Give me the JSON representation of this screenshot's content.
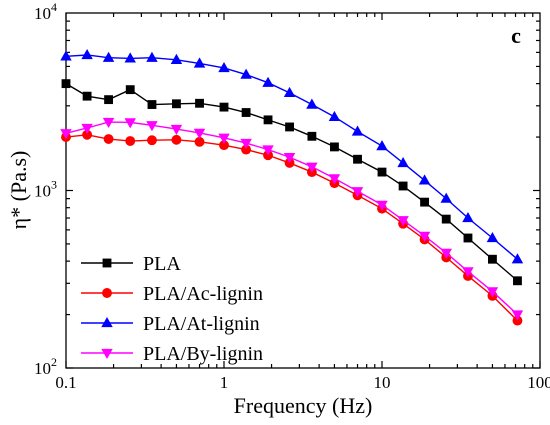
{
  "chart_data": {
    "type": "line",
    "panel_label": "c",
    "xlabel": "Frequency (Hz)",
    "ylabel": "η* (Pa.s)",
    "xscale": "log",
    "yscale": "log",
    "xlim": [
      0.1,
      100
    ],
    "ylim": [
      100,
      10000
    ],
    "grid": false,
    "legend_position": "bottom-left",
    "x_ticks": [
      {
        "value": 0.1,
        "label": "0.1"
      },
      {
        "value": 1,
        "label": "1"
      },
      {
        "value": 10,
        "label": "10"
      },
      {
        "value": 100,
        "label": "100"
      }
    ],
    "y_ticks": [
      {
        "value": 100,
        "base": "10",
        "exp": "2"
      },
      {
        "value": 1000,
        "base": "10",
        "exp": "3"
      },
      {
        "value": 10000,
        "base": "10",
        "exp": "4"
      }
    ],
    "x": [
      0.1,
      0.136,
      0.186,
      0.255,
      0.35,
      0.5,
      0.7,
      1.0,
      1.38,
      1.9,
      2.6,
      3.6,
      5.0,
      7.0,
      10,
      13.6,
      18.6,
      25.5,
      35,
      50,
      72
    ],
    "series": [
      {
        "name": "PLA",
        "color": "#000000",
        "marker": "square",
        "values": [
          4000,
          3400,
          3250,
          3700,
          3050,
          3080,
          3100,
          2950,
          2750,
          2500,
          2280,
          2020,
          1760,
          1500,
          1270,
          1060,
          860,
          690,
          540,
          410,
          310
        ]
      },
      {
        "name": "PLA/Ac-lignin",
        "color": "#ff0000",
        "marker": "circle",
        "values": [
          2000,
          2060,
          1950,
          1900,
          1920,
          1930,
          1880,
          1800,
          1700,
          1580,
          1430,
          1270,
          1100,
          940,
          790,
          650,
          530,
          420,
          330,
          255,
          185
        ]
      },
      {
        "name": "PLA/At-lignin",
        "color": "#0000ff",
        "marker": "triangle-up",
        "values": [
          5700,
          5800,
          5600,
          5550,
          5600,
          5450,
          5200,
          4900,
          4500,
          4050,
          3550,
          3050,
          2600,
          2150,
          1780,
          1430,
          1140,
          900,
          700,
          540,
          410
        ]
      },
      {
        "name": "PLA/By-lignin",
        "color": "#ff00ff",
        "marker": "triangle-down",
        "values": [
          2100,
          2250,
          2430,
          2420,
          2330,
          2220,
          2110,
          1980,
          1850,
          1700,
          1540,
          1360,
          1170,
          990,
          830,
          680,
          555,
          445,
          350,
          270,
          200
        ]
      }
    ]
  }
}
